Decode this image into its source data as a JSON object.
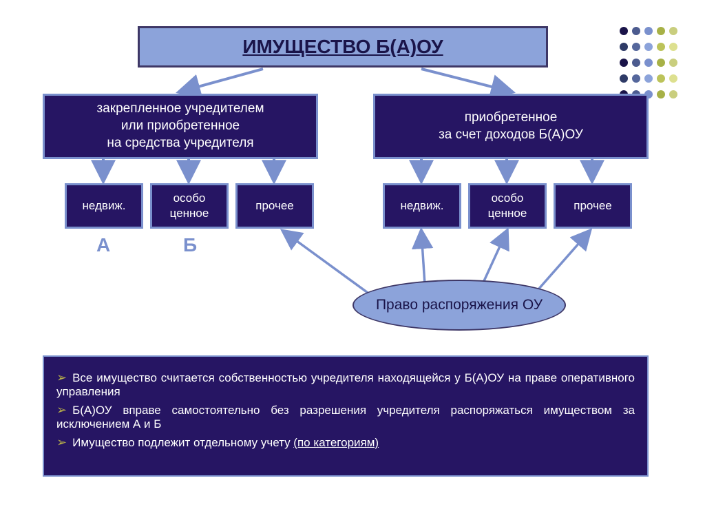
{
  "colors": {
    "title_bg": "#8ca3da",
    "title_border": "#3e3766",
    "title_text": "#1a1449",
    "node_bg": "#261563",
    "node_border": "#7a90cd",
    "node_text": "#ffffff",
    "letter": "#7a90cd",
    "ellipse_bg": "#8ca3da",
    "ellipse_text": "#1a1449",
    "arrow": "#7a90cd",
    "bullets_bg": "#261563",
    "bullets_text": "#ffffff",
    "bullets_marker": "#b8b04a",
    "dot_colors": [
      "#1a1449",
      "#4c5b8f",
      "#7a90cd",
      "#a7b147",
      "#c9ce7e",
      "#2e3a66",
      "#55679c",
      "#8ca3da",
      "#bcc35a",
      "#dde08f",
      "#1a1449",
      "#4c5b8f",
      "#7a90cd",
      "#a7b147",
      "#c9ce7e",
      "#2e3a66",
      "#55679c",
      "#8ca3da",
      "#bcc35a",
      "#dde08f",
      "#1a1449",
      "#4c5b8f",
      "#7a90cd",
      "#a7b147",
      "#c9ce7e"
    ]
  },
  "title": "ИМУЩЕСТВО Б(А)ОУ",
  "left_node": "закрепленное учредителем\nили приобретенное\nна средства учредителя",
  "right_node": "приобретенное\nза счет доходов Б(А)ОУ",
  "subs": {
    "l1": "недвиж.",
    "l2": "особо\nценное",
    "l3": "прочее",
    "r1": "недвиж.",
    "r2": "особо\nценное",
    "r3": "прочее"
  },
  "letters": {
    "a": "А",
    "b": "Б"
  },
  "ellipse": "Право распоряжения ОУ",
  "bullets": {
    "b1_pre": "Все имущество считается собственностью учредителя находящейся у Б(А)ОУ на праве оперативного управления",
    "b2_pre": "Б(А)ОУ вправе самостоятельно без разрешения учредителя распоряжаться имуществом за исключением А и Б",
    "b3_pre": "Имущество подлежит отдельному учету ",
    "b3_u": "(по категориям)"
  }
}
